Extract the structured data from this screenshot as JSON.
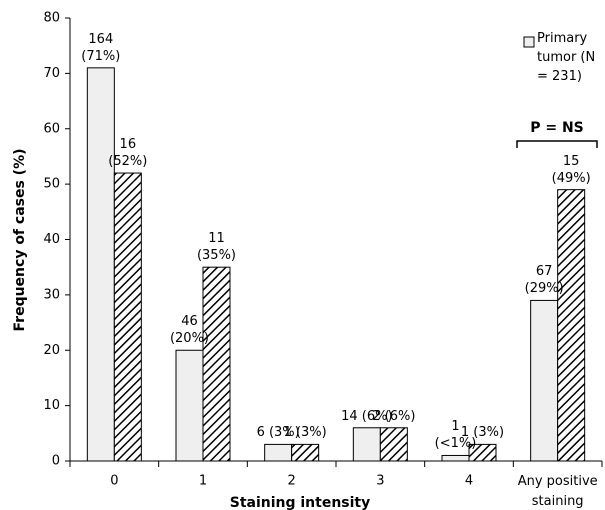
{
  "chart_data": {
    "type": "bar",
    "categories": [
      "0",
      "1",
      "2",
      "3",
      "4",
      "Any positive staining"
    ],
    "series": [
      {
        "name": "Primary tumor (N = 231)",
        "color": "#efefef",
        "values": [
          71,
          20,
          3,
          6,
          1,
          29
        ],
        "value_labels": [
          "164 (71%)",
          "46 (20%)",
          "6 (3%)",
          "14 (6%)",
          "1 (<1%)",
          "67 (29%)"
        ]
      },
      {
        "color": "#000000",
        "pattern": "hatch",
        "values": [
          52,
          35,
          3,
          6,
          3,
          49
        ],
        "value_labels": [
          "16 (52%)",
          "11 (35%)",
          "1 (3%)",
          "2 (6%)",
          "1 (3%)",
          "15 (49%)"
        ]
      }
    ],
    "ylim": [
      0,
      80
    ],
    "yticks": [
      0,
      10,
      20,
      30,
      40,
      50,
      60,
      70,
      80
    ],
    "ylabel": "Frequency of cases (%)",
    "xlabel": "Staining intensity",
    "annotation": "P = NS",
    "grid": false
  }
}
